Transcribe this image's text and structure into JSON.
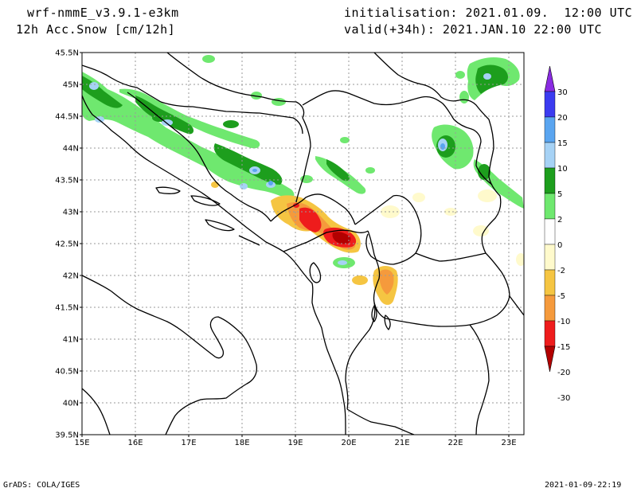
{
  "header": {
    "model": "wrf-nmmE_v3.9.1-e3km",
    "variable": "12h Acc.Snow [cm/12h]",
    "init": "initialisation: 2021.01.09.  12:00 UTC",
    "valid": "valid(+34h): 2021.JAN.10 22:00 UTC"
  },
  "footer": {
    "credit": "GrADS: COLA/IGES",
    "timestamp": "2021-01-09-22:19"
  },
  "axes": {
    "lat_labels": [
      "45.5N",
      "45N",
      "44.5N",
      "44N",
      "43.5N",
      "43N",
      "42.5N",
      "42N",
      "41.5N",
      "41N",
      "40.5N",
      "40N",
      "39.5N"
    ],
    "lon_labels": [
      "15E",
      "16E",
      "17E",
      "18E",
      "19E",
      "20E",
      "21E",
      "22E",
      "23E"
    ]
  },
  "colorbar": {
    "labels": [
      "30",
      "20",
      "15",
      "10",
      "5",
      "2",
      "0",
      "-2",
      "-5",
      "-10",
      "-15",
      "-20",
      "-30"
    ],
    "colors": [
      "#8a2be2",
      "#3b3bf0",
      "#5aa5f0",
      "#a6d2f5",
      "#1d9e1d",
      "#6fe86f",
      "#ffffff",
      "#fffacc",
      "#f5c542",
      "#f59a3c",
      "#ee1c1c",
      "#b30000"
    ]
  },
  "palette": {
    "dark_green": "#1d9e1d",
    "light_green": "#6fe86f",
    "light_blue": "#a6d2f5",
    "mid_blue": "#5aa5f0",
    "pale_yellow": "#fffacc",
    "yellow": "#f5c542",
    "orange": "#f59a3c",
    "red": "#ee1c1c",
    "dark_red": "#b30000"
  }
}
